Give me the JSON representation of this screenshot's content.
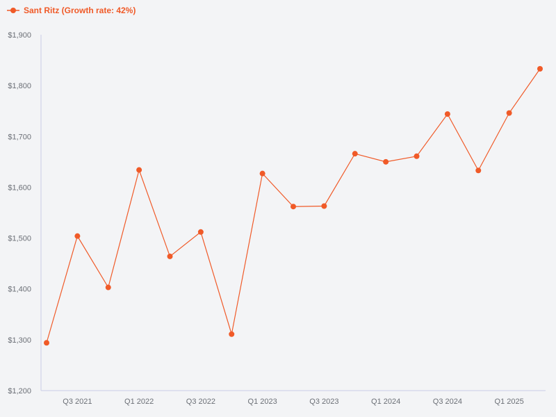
{
  "chart_data": {
    "type": "line",
    "title": "",
    "xlabel": "",
    "ylabel": "",
    "ylim": [
      1200,
      1900
    ],
    "yticks": [
      1200,
      1300,
      1400,
      1500,
      1600,
      1700,
      1800,
      1900
    ],
    "ytick_labels": [
      "$1,200",
      "$1,300",
      "$1,400",
      "$1,500",
      "$1,600",
      "$1,700",
      "$1,800",
      "$1,900"
    ],
    "categories": [
      "Q2 2021",
      "Q3 2021",
      "Q4 2021",
      "Q1 2022",
      "Q2 2022",
      "Q3 2022",
      "Q4 2022",
      "Q1 2023",
      "Q2 2023",
      "Q3 2023",
      "Q4 2023",
      "Q1 2024",
      "Q2 2024",
      "Q3 2024",
      "Q4 2024",
      "Q1 2025",
      "Q2 2025"
    ],
    "xtick_labels": [
      "",
      "Q3 2021",
      "",
      "Q1 2022",
      "",
      "Q3 2022",
      "",
      "Q1 2023",
      "",
      "Q3 2023",
      "",
      "Q1 2024",
      "",
      "Q3 2024",
      "",
      "Q1 2025",
      ""
    ],
    "grid": false,
    "legend_position": "top-left",
    "series": [
      {
        "name": "Sant Ritz (Growth rate: 42%)",
        "color": "#f05a28",
        "values": [
          1294,
          1504,
          1403,
          1634,
          1464,
          1512,
          1311,
          1627,
          1562,
          1563,
          1666,
          1650,
          1661,
          1744,
          1633,
          1746,
          1833
        ]
      }
    ]
  },
  "colors": {
    "background": "#f3f4f6",
    "axis": "#c9cde6",
    "series": "#f05a28",
    "tick_text": "#6b6f76"
  }
}
